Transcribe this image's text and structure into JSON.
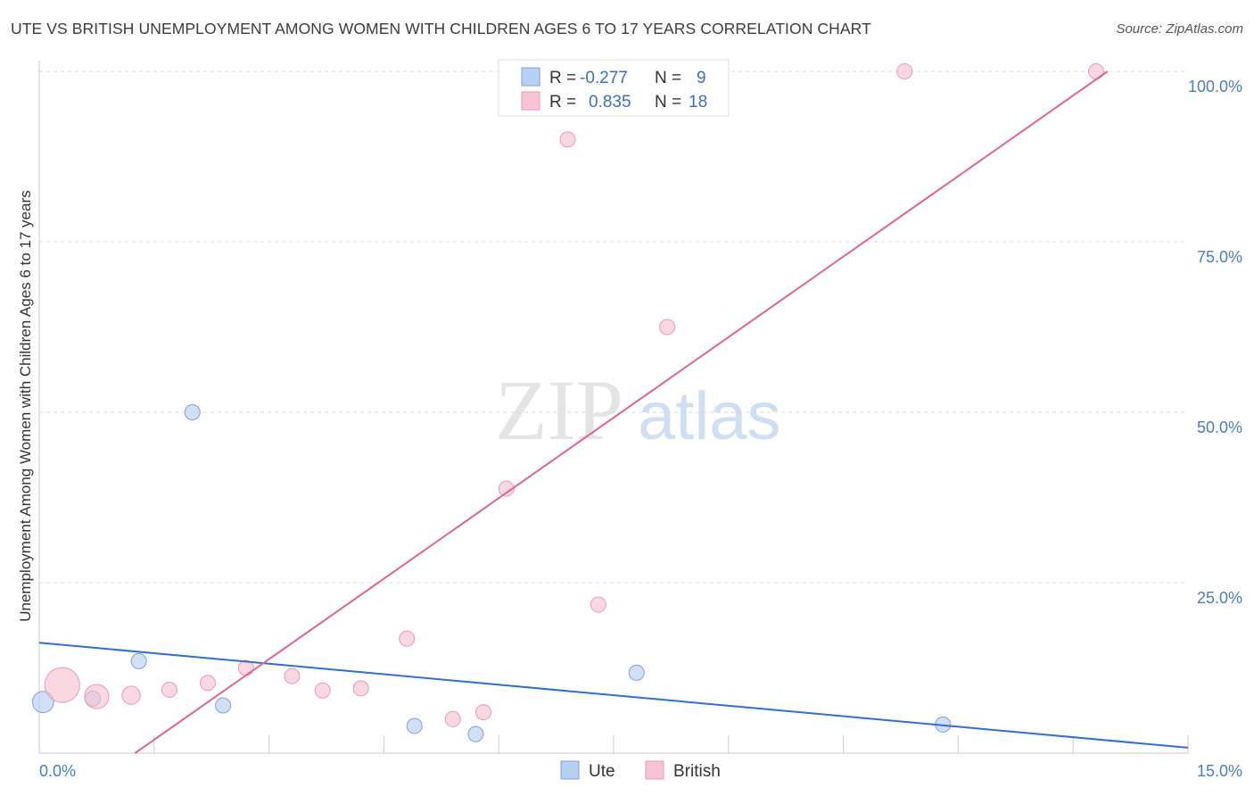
{
  "header": {
    "title": "UTE VS BRITISH UNEMPLOYMENT AMONG WOMEN WITH CHILDREN AGES 6 TO 17 YEARS CORRELATION CHART",
    "source": "Source: ZipAtlas.com"
  },
  "watermark": {
    "zip": "ZIP",
    "atlas": "atlas"
  },
  "legend_top": [
    {
      "r_label": "R = ",
      "r_value": "-0.277",
      "n_label": "N = ",
      "n_value": "9"
    },
    {
      "r_label": "R = ",
      "r_value": "0.835",
      "n_label": "N = ",
      "n_value": "18"
    }
  ],
  "legend_bottom": [
    {
      "label": "Ute"
    },
    {
      "label": "British"
    }
  ],
  "colors": {
    "ute_fill": "#b8d0f3",
    "ute_stroke": "#7aa3df",
    "ute_line": "#2f6fcf",
    "british_fill": "#f8c3d2",
    "british_stroke": "#ec9ab3",
    "british_line": "#e06690",
    "grid": "#dddddd",
    "axis_text": "#4a7cc7"
  },
  "chart_data": {
    "type": "scatter",
    "title": "UTE VS BRITISH UNEMPLOYMENT AMONG WOMEN WITH CHILDREN AGES 6 TO 17 YEARS CORRELATION CHART",
    "xlabel": "",
    "ylabel": "Unemployment Among Women with Children Ages 6 to 17 years",
    "xlim": [
      0,
      15
    ],
    "ylim": [
      0,
      100
    ],
    "x_tick_labels": [
      {
        "value": 0,
        "label": "0.0%"
      },
      {
        "value": 15,
        "label": "15.0%"
      }
    ],
    "y_tick_labels": [
      {
        "value": 25,
        "label": "25.0%"
      },
      {
        "value": 50,
        "label": "50.0%"
      },
      {
        "value": 75,
        "label": "75.0%"
      },
      {
        "value": 100,
        "label": "100.0%"
      }
    ],
    "series": [
      {
        "name": "Ute",
        "r": -0.277,
        "n": 9,
        "points": [
          {
            "x": 0.05,
            "y": 7.5,
            "size": 1.4
          },
          {
            "x": 0.7,
            "y": 8.0,
            "size": 1.0
          },
          {
            "x": 1.3,
            "y": 13.5,
            "size": 1.0
          },
          {
            "x": 2.0,
            "y": 50.0,
            "size": 1.0
          },
          {
            "x": 2.4,
            "y": 7.0,
            "size": 1.0
          },
          {
            "x": 4.9,
            "y": 4.0,
            "size": 1.0
          },
          {
            "x": 5.7,
            "y": 2.8,
            "size": 1.0
          },
          {
            "x": 7.8,
            "y": 11.8,
            "size": 1.0
          },
          {
            "x": 11.8,
            "y": 4.2,
            "size": 1.0
          }
        ],
        "trend": {
          "x": [
            0,
            15
          ],
          "y": [
            16.2,
            0.8
          ]
        }
      },
      {
        "name": "British",
        "r": 0.835,
        "n": 18,
        "points": [
          {
            "x": 0.3,
            "y": 10.0,
            "size": 2.3
          },
          {
            "x": 0.75,
            "y": 8.3,
            "size": 1.6
          },
          {
            "x": 1.2,
            "y": 8.5,
            "size": 1.2
          },
          {
            "x": 1.7,
            "y": 9.3,
            "size": 1.0
          },
          {
            "x": 2.2,
            "y": 10.3,
            "size": 1.0
          },
          {
            "x": 2.7,
            "y": 12.5,
            "size": 1.0
          },
          {
            "x": 3.3,
            "y": 11.3,
            "size": 1.0
          },
          {
            "x": 3.7,
            "y": 9.2,
            "size": 1.0
          },
          {
            "x": 4.2,
            "y": 9.5,
            "size": 1.0
          },
          {
            "x": 4.8,
            "y": 16.8,
            "size": 1.0
          },
          {
            "x": 5.4,
            "y": 5.0,
            "size": 1.0
          },
          {
            "x": 5.8,
            "y": 6.0,
            "size": 1.0
          },
          {
            "x": 6.1,
            "y": 38.8,
            "size": 1.0
          },
          {
            "x": 6.9,
            "y": 90.0,
            "size": 1.0
          },
          {
            "x": 7.3,
            "y": 21.8,
            "size": 1.0
          },
          {
            "x": 8.2,
            "y": 62.5,
            "size": 1.0
          },
          {
            "x": 11.3,
            "y": 100.0,
            "size": 1.0
          },
          {
            "x": 13.8,
            "y": 100.0,
            "size": 1.0
          }
        ],
        "trend": {
          "x": [
            1.25,
            13.95
          ],
          "y": [
            0,
            100
          ]
        }
      }
    ]
  }
}
